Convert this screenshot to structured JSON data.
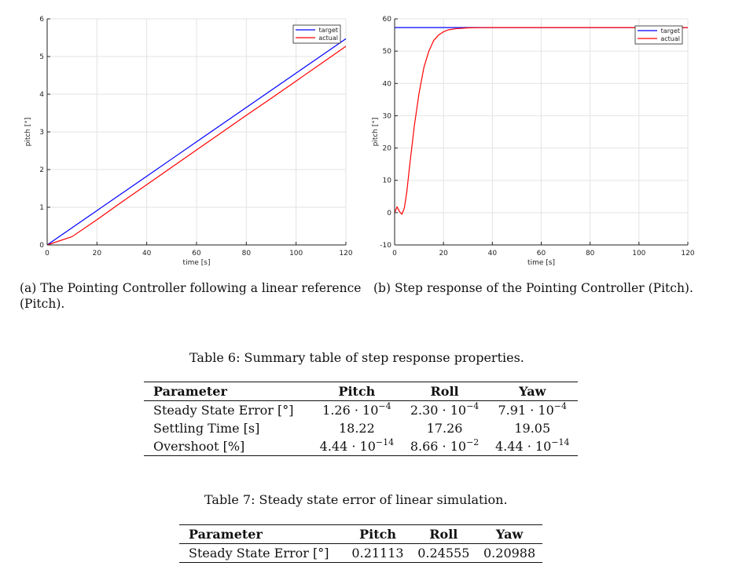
{
  "chart_data": [
    {
      "type": "line",
      "x": [
        0,
        10,
        20,
        30,
        40,
        50,
        60,
        70,
        80,
        90,
        100,
        110,
        120
      ],
      "series": [
        {
          "name": "target",
          "color": "#0000ff",
          "y": [
            0,
            0.456,
            0.912,
            1.368,
            1.824,
            2.28,
            2.736,
            3.192,
            3.648,
            4.104,
            4.56,
            5.016,
            5.472
          ]
        },
        {
          "name": "actual",
          "color": "#ff0000",
          "y": [
            0,
            0.22,
            0.67,
            1.14,
            1.6,
            2.06,
            2.52,
            2.98,
            3.44,
            3.89,
            4.35,
            4.81,
            5.27
          ]
        }
      ],
      "xlabel": "time [s]",
      "ylabel": "pitch [°]",
      "xlim": [
        0,
        120
      ],
      "ylim": [
        0,
        6
      ],
      "xticks": [
        "0",
        "20",
        "40",
        "60",
        "80",
        "100",
        "120"
      ],
      "yticks": [
        "0",
        "1",
        "2",
        "3",
        "4",
        "5",
        "6"
      ],
      "grid": true,
      "legend": "top-right"
    },
    {
      "type": "line",
      "x": [
        0,
        1,
        2,
        3,
        4,
        5,
        6,
        8,
        10,
        12,
        14,
        16,
        18,
        20,
        22,
        25,
        30,
        35,
        40,
        50,
        60,
        80,
        100,
        120
      ],
      "series": [
        {
          "name": "target",
          "color": "#0000ff",
          "y": [
            57.3,
            57.3,
            57.3,
            57.3,
            57.3,
            57.3,
            57.3,
            57.3,
            57.3,
            57.3,
            57.3,
            57.3,
            57.3,
            57.3,
            57.3,
            57.3,
            57.3,
            57.3,
            57.3,
            57.3,
            57.3,
            57.3,
            57.3,
            57.3
          ]
        },
        {
          "name": "actual",
          "color": "#ff0000",
          "y": [
            0,
            1.8,
            0.3,
            -0.5,
            1.5,
            6.5,
            13.5,
            26.5,
            37,
            45,
            50,
            53.3,
            55,
            56,
            56.6,
            56.95,
            57.2,
            57.28,
            57.3,
            57.3,
            57.3,
            57.3,
            57.3,
            57.3
          ]
        }
      ],
      "xlabel": "time [s]",
      "ylabel": "pitch [°]",
      "xlim": [
        0,
        120
      ],
      "ylim": [
        -10,
        60
      ],
      "xticks": [
        "0",
        "20",
        "40",
        "60",
        "80",
        "100",
        "120"
      ],
      "yticks": [
        "-10",
        "0",
        "10",
        "20",
        "30",
        "40",
        "50",
        "60"
      ],
      "grid": true,
      "legend": "top-right"
    }
  ],
  "captions": {
    "a_line1": "(a) The Pointing Controller following a linear reference",
    "a_line2": "(Pitch).",
    "b_line1": "(b) Step response of the Pointing Controller (Pitch)."
  },
  "table6": {
    "caption": "Table 6: Summary table of step response properties.",
    "headers": [
      "Parameter",
      "Pitch",
      "Roll",
      "Yaw"
    ],
    "rows": [
      {
        "param": "Steady State Error [°]",
        "pitch_base": "1.26 · 10",
        "pitch_exp": "−4",
        "roll_base": "2.30 · 10",
        "roll_exp": "−4",
        "yaw_base": "7.91 · 10",
        "yaw_exp": "−4"
      },
      {
        "param": "Settling Time [s]",
        "pitch_base": "18.22",
        "pitch_exp": "",
        "roll_base": "17.26",
        "roll_exp": "",
        "yaw_base": "19.05",
        "yaw_exp": ""
      },
      {
        "param": "Overshoot [%]",
        "pitch_base": "4.44 · 10",
        "pitch_exp": "−14",
        "roll_base": "8.66 · 10",
        "roll_exp": "−2",
        "yaw_base": "4.44 · 10",
        "yaw_exp": "−14"
      }
    ]
  },
  "table7": {
    "caption": "Table 7: Steady state error of linear simulation.",
    "headers": [
      "Parameter",
      "Pitch",
      "Roll",
      "Yaw"
    ],
    "rows": [
      {
        "param": "Steady State Error [°]",
        "pitch": "0.21113",
        "roll": "0.24555",
        "yaw": "0.20988"
      }
    ]
  }
}
